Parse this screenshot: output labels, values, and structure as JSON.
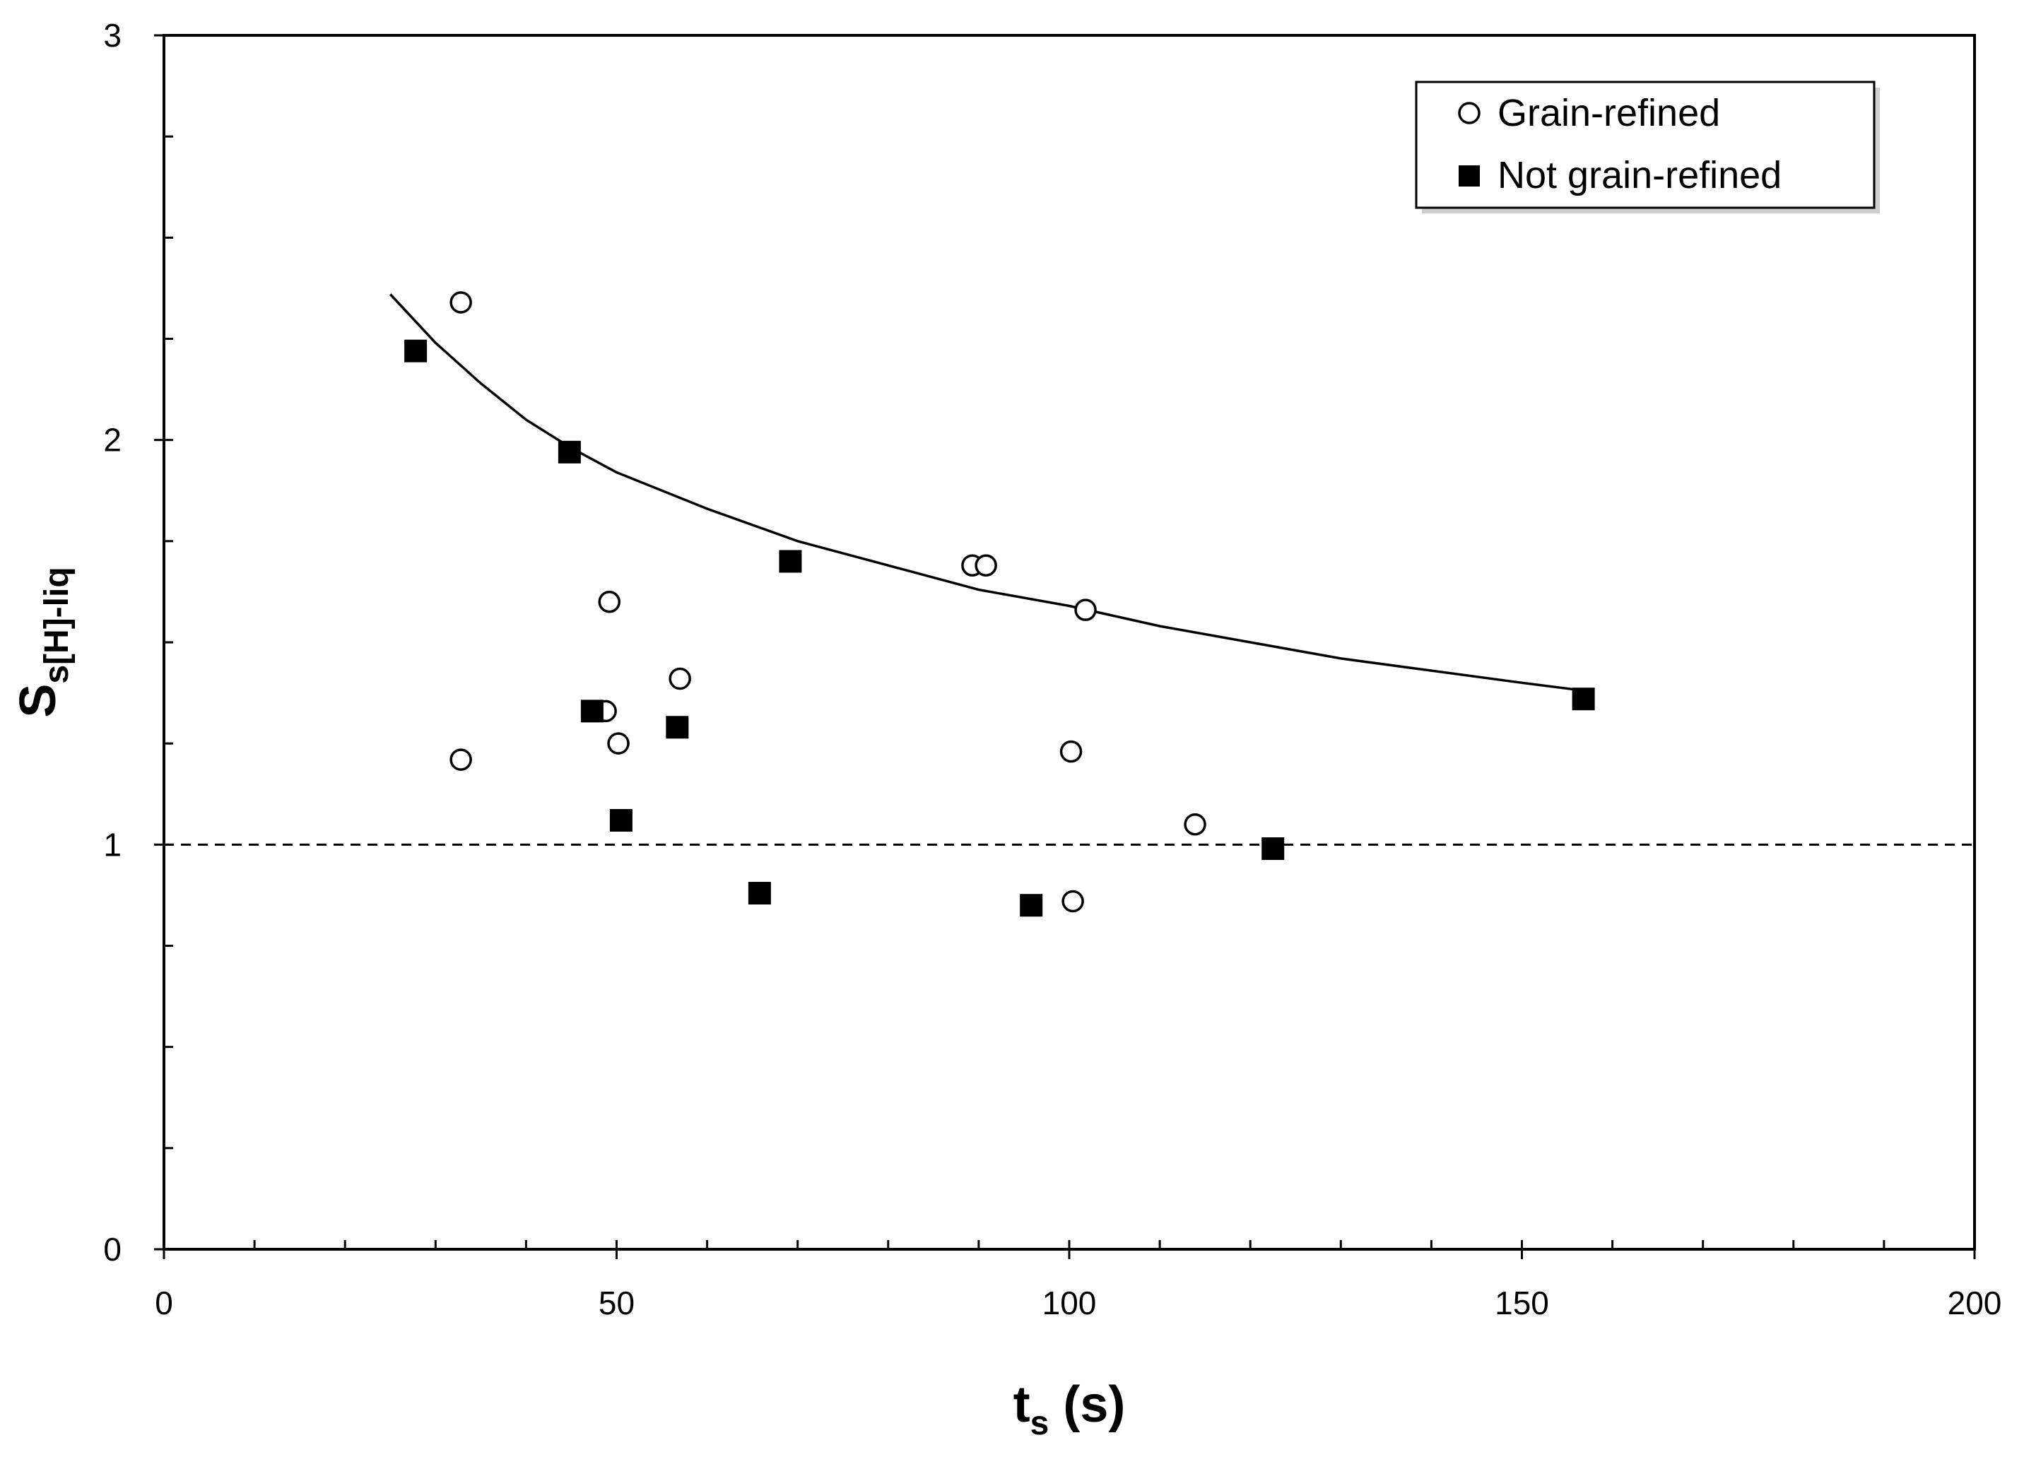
{
  "chart_data": {
    "type": "scatter",
    "title": "",
    "xlabel": {
      "main": "t",
      "sub": "s",
      "unit": " (s)"
    },
    "ylabel": {
      "main": "S",
      "sub": "s[H]-liq"
    },
    "xlim": [
      0,
      200
    ],
    "ylim": [
      0,
      3
    ],
    "x_ticks": [
      0,
      50,
      100,
      150,
      200
    ],
    "x_tick_labels": [
      "0",
      "50",
      "100",
      "150",
      "200"
    ],
    "x_minor_step": 10,
    "y_ticks": [
      0,
      1,
      2,
      3
    ],
    "y_tick_labels": [
      "0",
      "1",
      "2",
      "3"
    ],
    "y_minor_step": 0.25,
    "grid": false,
    "legend_position": "top-right",
    "series": [
      {
        "name": "Grain-refined",
        "marker": "open-circle",
        "points": [
          [
            32.8,
            2.34
          ],
          [
            32.8,
            1.21
          ],
          [
            49.2,
            1.6
          ],
          [
            48.8,
            1.33
          ],
          [
            50.2,
            1.25
          ],
          [
            57.0,
            1.41
          ],
          [
            89.3,
            1.69
          ],
          [
            90.8,
            1.69
          ],
          [
            101.8,
            1.58
          ],
          [
            100.2,
            1.23
          ],
          [
            100.4,
            0.86
          ],
          [
            113.9,
            1.05
          ]
        ]
      },
      {
        "name": "Not grain-refined",
        "marker": "filled-square",
        "points": [
          [
            27.8,
            2.22
          ],
          [
            44.8,
            1.97
          ],
          [
            69.2,
            1.7
          ],
          [
            47.3,
            1.33
          ],
          [
            56.7,
            1.29
          ],
          [
            50.5,
            1.06
          ],
          [
            65.8,
            0.88
          ],
          [
            95.8,
            0.85
          ],
          [
            122.5,
            0.99
          ],
          [
            156.8,
            1.36
          ]
        ]
      }
    ],
    "fit_curve": {
      "name": "power-law fit",
      "style": "solid",
      "points": [
        [
          25,
          2.36
        ],
        [
          30,
          2.24
        ],
        [
          35,
          2.14
        ],
        [
          40,
          2.05
        ],
        [
          45,
          1.98
        ],
        [
          50,
          1.92
        ],
        [
          60,
          1.83
        ],
        [
          70,
          1.75
        ],
        [
          80,
          1.69
        ],
        [
          90,
          1.63
        ],
        [
          100,
          1.59
        ],
        [
          110,
          1.54
        ],
        [
          120,
          1.5
        ],
        [
          130,
          1.46
        ],
        [
          140,
          1.43
        ],
        [
          150,
          1.4
        ],
        [
          157,
          1.38
        ]
      ]
    },
    "reference_line": {
      "y": 1,
      "style": "dashed"
    },
    "colors": {
      "marker": "#000000",
      "axis": "#000000",
      "background": "#ffffff"
    }
  }
}
